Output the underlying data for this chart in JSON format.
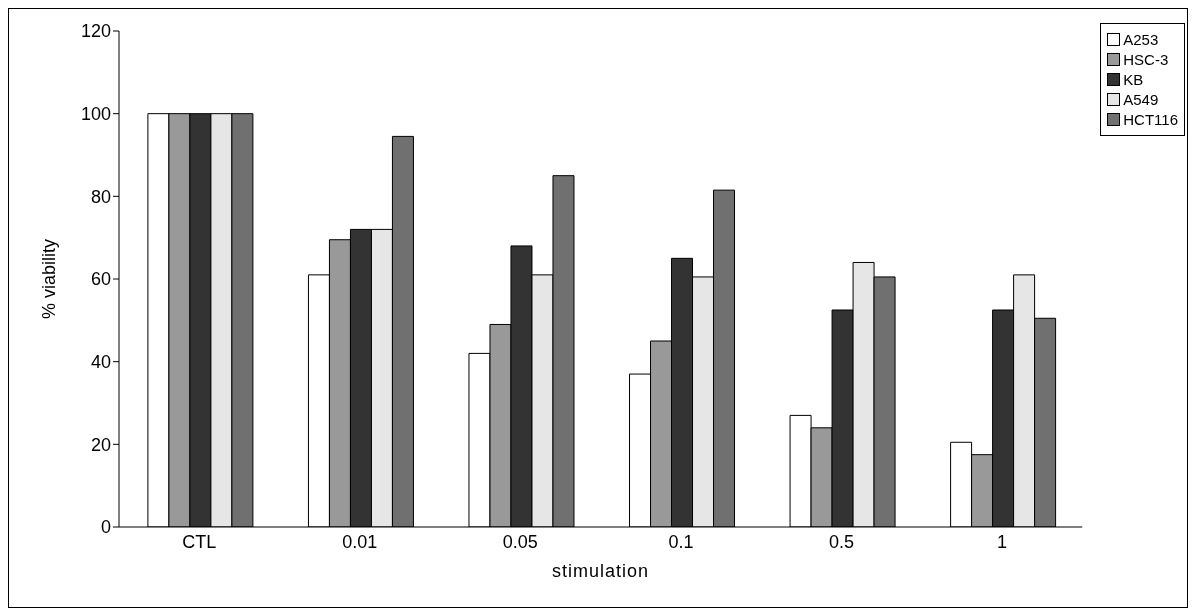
{
  "chart_data": {
    "type": "bar",
    "xlabel": "stimulation",
    "ylabel": "% viability",
    "categories": [
      "CTL",
      "0.01",
      "0.05",
      "0.1",
      "0.5",
      "1"
    ],
    "series": [
      {
        "name": "A253",
        "color": "#ffffff",
        "values": [
          100,
          61,
          42,
          37,
          27,
          20.5
        ]
      },
      {
        "name": "HSC-3",
        "color": "#999999",
        "values": [
          100,
          69.5,
          49,
          45,
          24,
          17.5
        ]
      },
      {
        "name": "KB",
        "color": "#333333",
        "values": [
          100,
          72,
          68,
          65,
          52.5,
          52.5
        ]
      },
      {
        "name": "A549",
        "color": "#e6e6e6",
        "values": [
          100,
          72,
          61,
          60.5,
          64,
          61
        ]
      },
      {
        "name": "HCT116",
        "color": "#707070",
        "values": [
          100,
          94.5,
          85,
          81.5,
          60.5,
          50.5
        ]
      }
    ],
    "ylim": [
      0,
      120
    ],
    "yticks": [
      0,
      20,
      40,
      60,
      80,
      100,
      120
    ],
    "grid": false,
    "legend": "top right"
  }
}
